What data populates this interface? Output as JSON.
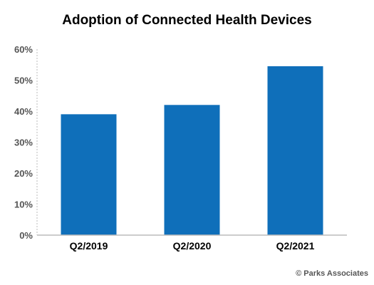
{
  "chart_data": {
    "type": "bar",
    "title": "Adoption of Connected Health Devices",
    "xlabel": "",
    "ylabel": "",
    "categories": [
      "Q2/2019",
      "Q2/2020",
      "Q2/2021"
    ],
    "values": [
      39,
      42,
      54.5
    ],
    "ylim": [
      0,
      60
    ],
    "yticks": [
      "0%",
      "10%",
      "20%",
      "30%",
      "40%",
      "50%",
      "60%"
    ],
    "grid": false,
    "legend": "none",
    "bar_color": "#0f6fba"
  },
  "source": "© Parks Associates"
}
